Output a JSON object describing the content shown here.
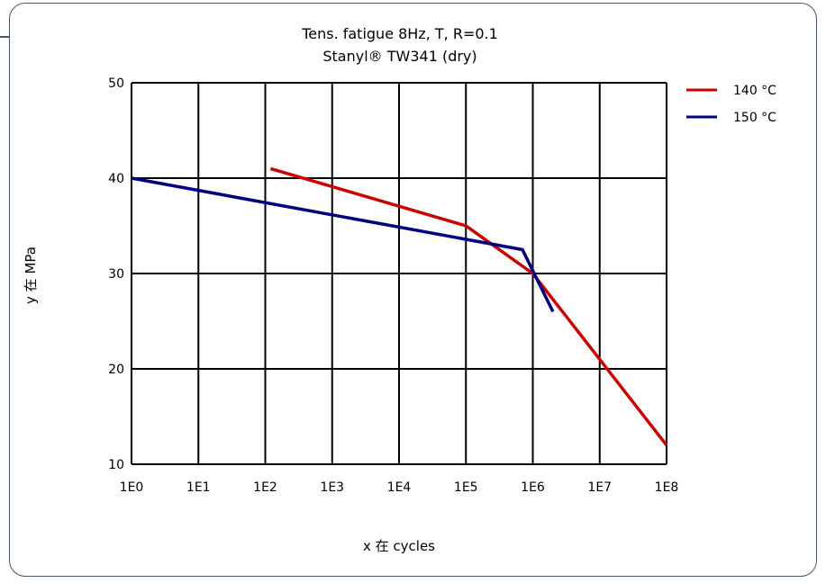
{
  "chart_data": {
    "type": "line",
    "title": "Tens. fatigue 8Hz, T, R=0.1",
    "subtitle": "Stanyl® TW341 (dry)",
    "xlabel": "x 在 cycles",
    "ylabel": "y 在 MPa",
    "x_scale": "log",
    "xlim": [
      1,
      100000000
    ],
    "ylim": [
      10,
      50
    ],
    "x_ticks": [
      "1E0",
      "1E1",
      "1E2",
      "1E3",
      "1E4",
      "1E5",
      "1E6",
      "1E7",
      "1E8"
    ],
    "y_ticks": [
      "10",
      "20",
      "30",
      "40",
      "50"
    ],
    "grid": true,
    "legend_position": "top-right",
    "series": [
      {
        "name": "140 °C",
        "color": "#cc0000",
        "x": [
          120,
          100000,
          1000000,
          100000000
        ],
        "y": [
          41,
          35,
          30,
          12
        ]
      },
      {
        "name": "150 °C",
        "color": "#000080",
        "x": [
          1,
          700000,
          2000000
        ],
        "y": [
          40,
          32.5,
          26
        ]
      }
    ]
  }
}
